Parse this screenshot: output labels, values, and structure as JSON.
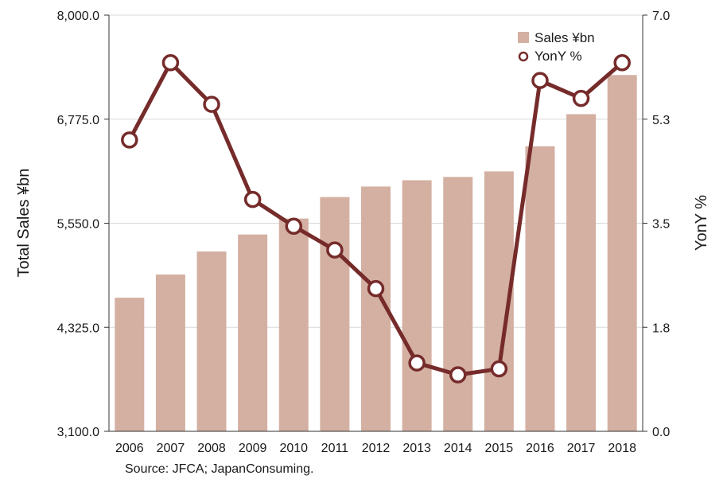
{
  "chart_data": {
    "type": "bar+line",
    "categories": [
      "2006",
      "2007",
      "2008",
      "2009",
      "2010",
      "2011",
      "2012",
      "2013",
      "2014",
      "2015",
      "2016",
      "2017",
      "2018"
    ],
    "series": [
      {
        "name": "Sales ¥bn",
        "type": "bar",
        "axis": "left",
        "values": [
          4673,
          4946,
          5217,
          5417,
          5605,
          5858,
          5982,
          6056,
          6095,
          6160,
          6456,
          6834,
          7295
        ]
      },
      {
        "name": "YonY %",
        "type": "line",
        "axis": "right",
        "values": [
          4.9,
          6.2,
          5.5,
          3.9,
          3.45,
          3.05,
          2.4,
          1.15,
          0.95,
          1.05,
          5.9,
          5.6,
          6.2
        ]
      }
    ],
    "ylabel": "Total Sales ¥bn",
    "y2label": "YonY %",
    "ylim": [
      3100,
      8000
    ],
    "y2lim": [
      0,
      7
    ],
    "yticks": [
      "3,100.0",
      "4,325.0",
      "5,550.0",
      "6,775.0",
      "8,000.0"
    ],
    "y2ticks": [
      "0.0",
      "1.8",
      "3.5",
      "5.3",
      "7.0"
    ],
    "grid": true,
    "legend": "top-right",
    "colors": {
      "bar": "#d4b0a2",
      "line": "#762b2b",
      "marker_fill": "#ffffff",
      "grid": "#d9d9d9",
      "axis": "#333333"
    }
  },
  "source_note": "Source: JFCA; JapanConsuming."
}
